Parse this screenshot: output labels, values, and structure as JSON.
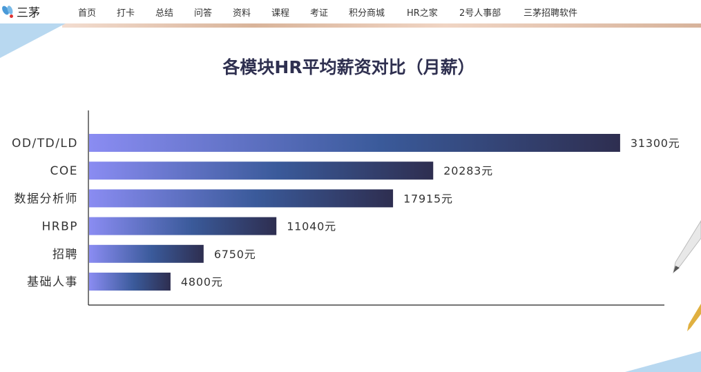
{
  "nav": {
    "logo": "三茅",
    "items": [
      "首页",
      "打卡",
      "总结",
      "问答",
      "资料",
      "课程",
      "考证",
      "积分商城",
      "HR之家",
      "2号人事部",
      "三茅招聘软件"
    ]
  },
  "chart_data": {
    "type": "bar",
    "orientation": "horizontal",
    "title": "各模块HR平均薪资对比（月薪）",
    "categories": [
      "OD/TD/LD",
      "COE",
      "数据分析师",
      "HRBP",
      "招聘",
      "基础人事"
    ],
    "values": [
      31300,
      20283,
      17915,
      11040,
      6750,
      4800
    ],
    "data_labels": [
      "31300元",
      "20283元",
      "17915元",
      "11040元",
      "6750元",
      "4800元"
    ],
    "unit": "元",
    "xlim": [
      0,
      33950
    ],
    "grid": false,
    "legend": "none",
    "colors": {
      "bar_start": "#8a8cf2",
      "bar_mid": "#3a5a9a",
      "bar_end": "#2e2e50"
    }
  }
}
